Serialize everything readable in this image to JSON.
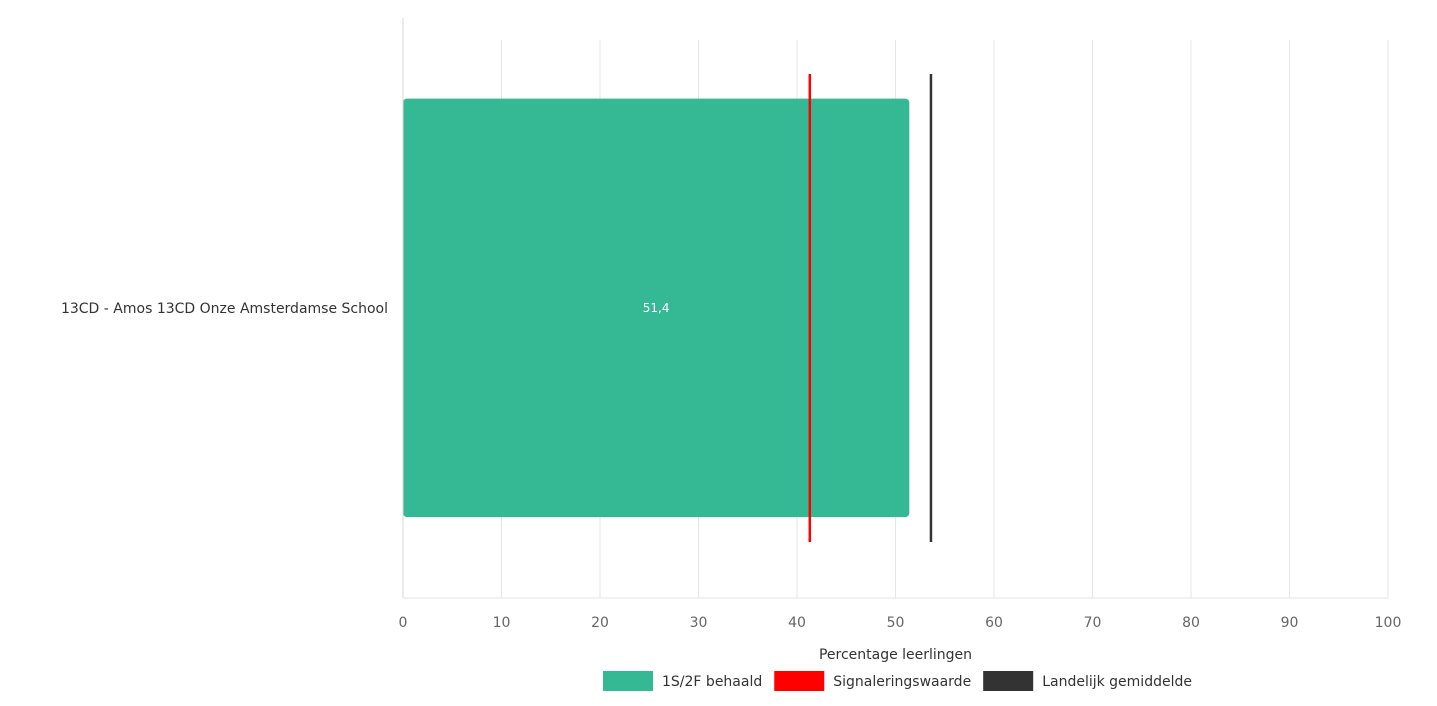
{
  "chart_data": {
    "type": "bar",
    "orientation": "horizontal",
    "categories": [
      "13CD - Amos 13CD Onze Amsterdamse School"
    ],
    "series": [
      {
        "name": "1S/2F behaald",
        "values": [
          51.4
        ],
        "color": "#35b894",
        "data_labels": [
          "51,4"
        ]
      }
    ],
    "reference_lines": [
      {
        "name": "Signaleringswaarde",
        "value": 41.3,
        "color": "#ff0000"
      },
      {
        "name": "Landelijk gemiddelde",
        "value": 53.6,
        "color": "#333333"
      }
    ],
    "xlabel": "Percentage leerlingen",
    "ylabel": "",
    "xlim": [
      0,
      100
    ],
    "xticks": [
      0,
      10,
      20,
      30,
      40,
      50,
      60,
      70,
      80,
      90,
      100
    ],
    "grid": true,
    "legend": {
      "placement": "bottom",
      "items": [
        {
          "label": "1S/2F behaald",
          "color": "#35b894"
        },
        {
          "label": "Signaleringswaarde",
          "color": "#ff0000"
        },
        {
          "label": "Landelijk gemiddelde",
          "color": "#333333"
        }
      ]
    }
  }
}
